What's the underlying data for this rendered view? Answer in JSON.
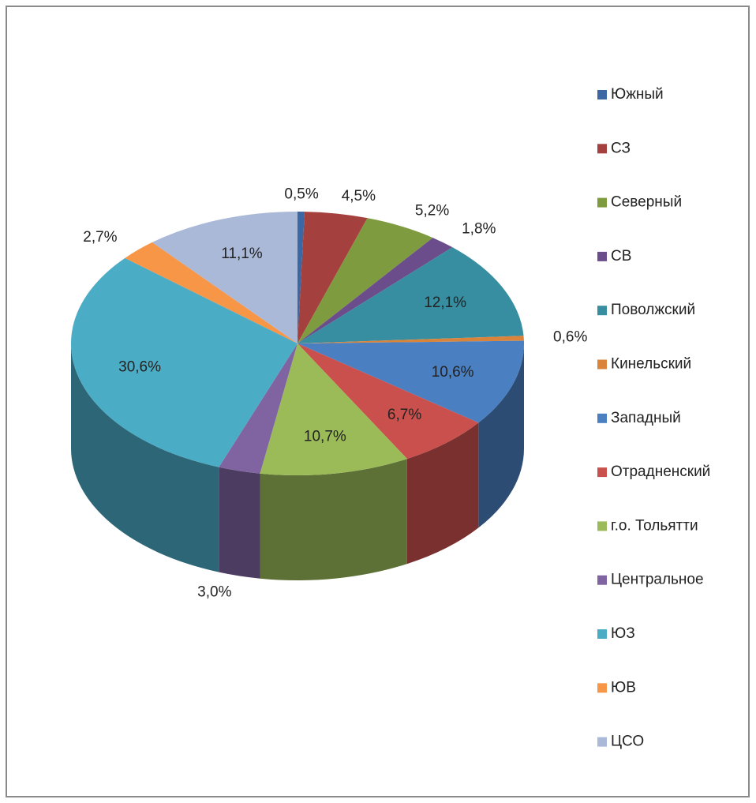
{
  "chart_data": {
    "type": "pie",
    "categories": [
      "Южный",
      "СЗ",
      "Северный",
      "СВ",
      "Поволжский",
      "Кинельский",
      "Западный",
      "Отрадненский",
      "г.о. Тольятти",
      "Центральное",
      "ЮЗ",
      "ЮВ",
      "ЦСО"
    ],
    "values": [
      0.5,
      4.5,
      5.2,
      1.8,
      12.1,
      0.6,
      10.6,
      6.7,
      10.7,
      3.0,
      30.6,
      2.7,
      11.1
    ],
    "value_labels": [
      "0,5%",
      "4,5%",
      "5,2%",
      "1,8%",
      "12,1%",
      "0,6%",
      "10,6%",
      "6,7%",
      "10,7%",
      "3,0%",
      "30,6%",
      "2,7%",
      "11,1%"
    ],
    "colors": [
      "#3c67a3",
      "#a4403d",
      "#7f9b3f",
      "#6b4d8c",
      "#378ea0",
      "#d9843a",
      "#4a7fc1",
      "#c9504d",
      "#9bbb59",
      "#8064a2",
      "#4bacc6",
      "#f79646",
      "#aab9d8"
    ],
    "legend": "right"
  }
}
